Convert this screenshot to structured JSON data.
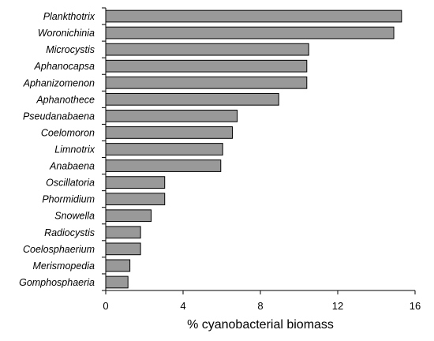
{
  "chart_data": {
    "type": "bar",
    "orientation": "horizontal",
    "categories": [
      "Plankthotrix",
      "Woronichinia",
      "Microcystis",
      "Aphanocapsa",
      "Aphanizomenon",
      "Aphanothece",
      "Pseudanabaena",
      "Coelomoron",
      "Limnotrix",
      "Anabaena",
      "Oscillatoria",
      "Phormidium",
      "Snowella",
      "Radiocystis",
      "Coelosphaerium",
      "Merismopedia",
      "Gomphosphaeria"
    ],
    "values": [
      15.3,
      14.9,
      10.5,
      10.4,
      10.4,
      8.95,
      6.8,
      6.55,
      6.05,
      5.95,
      3.05,
      3.05,
      2.35,
      1.8,
      1.8,
      1.25,
      1.15
    ],
    "title": "",
    "xlabel": "% cyanobacterial biomass",
    "ylabel": "",
    "xlim": [
      0,
      16
    ],
    "xticks": [
      0,
      4,
      8,
      12,
      16
    ],
    "grid": false,
    "legend": "none",
    "bar_color": "#999999"
  }
}
